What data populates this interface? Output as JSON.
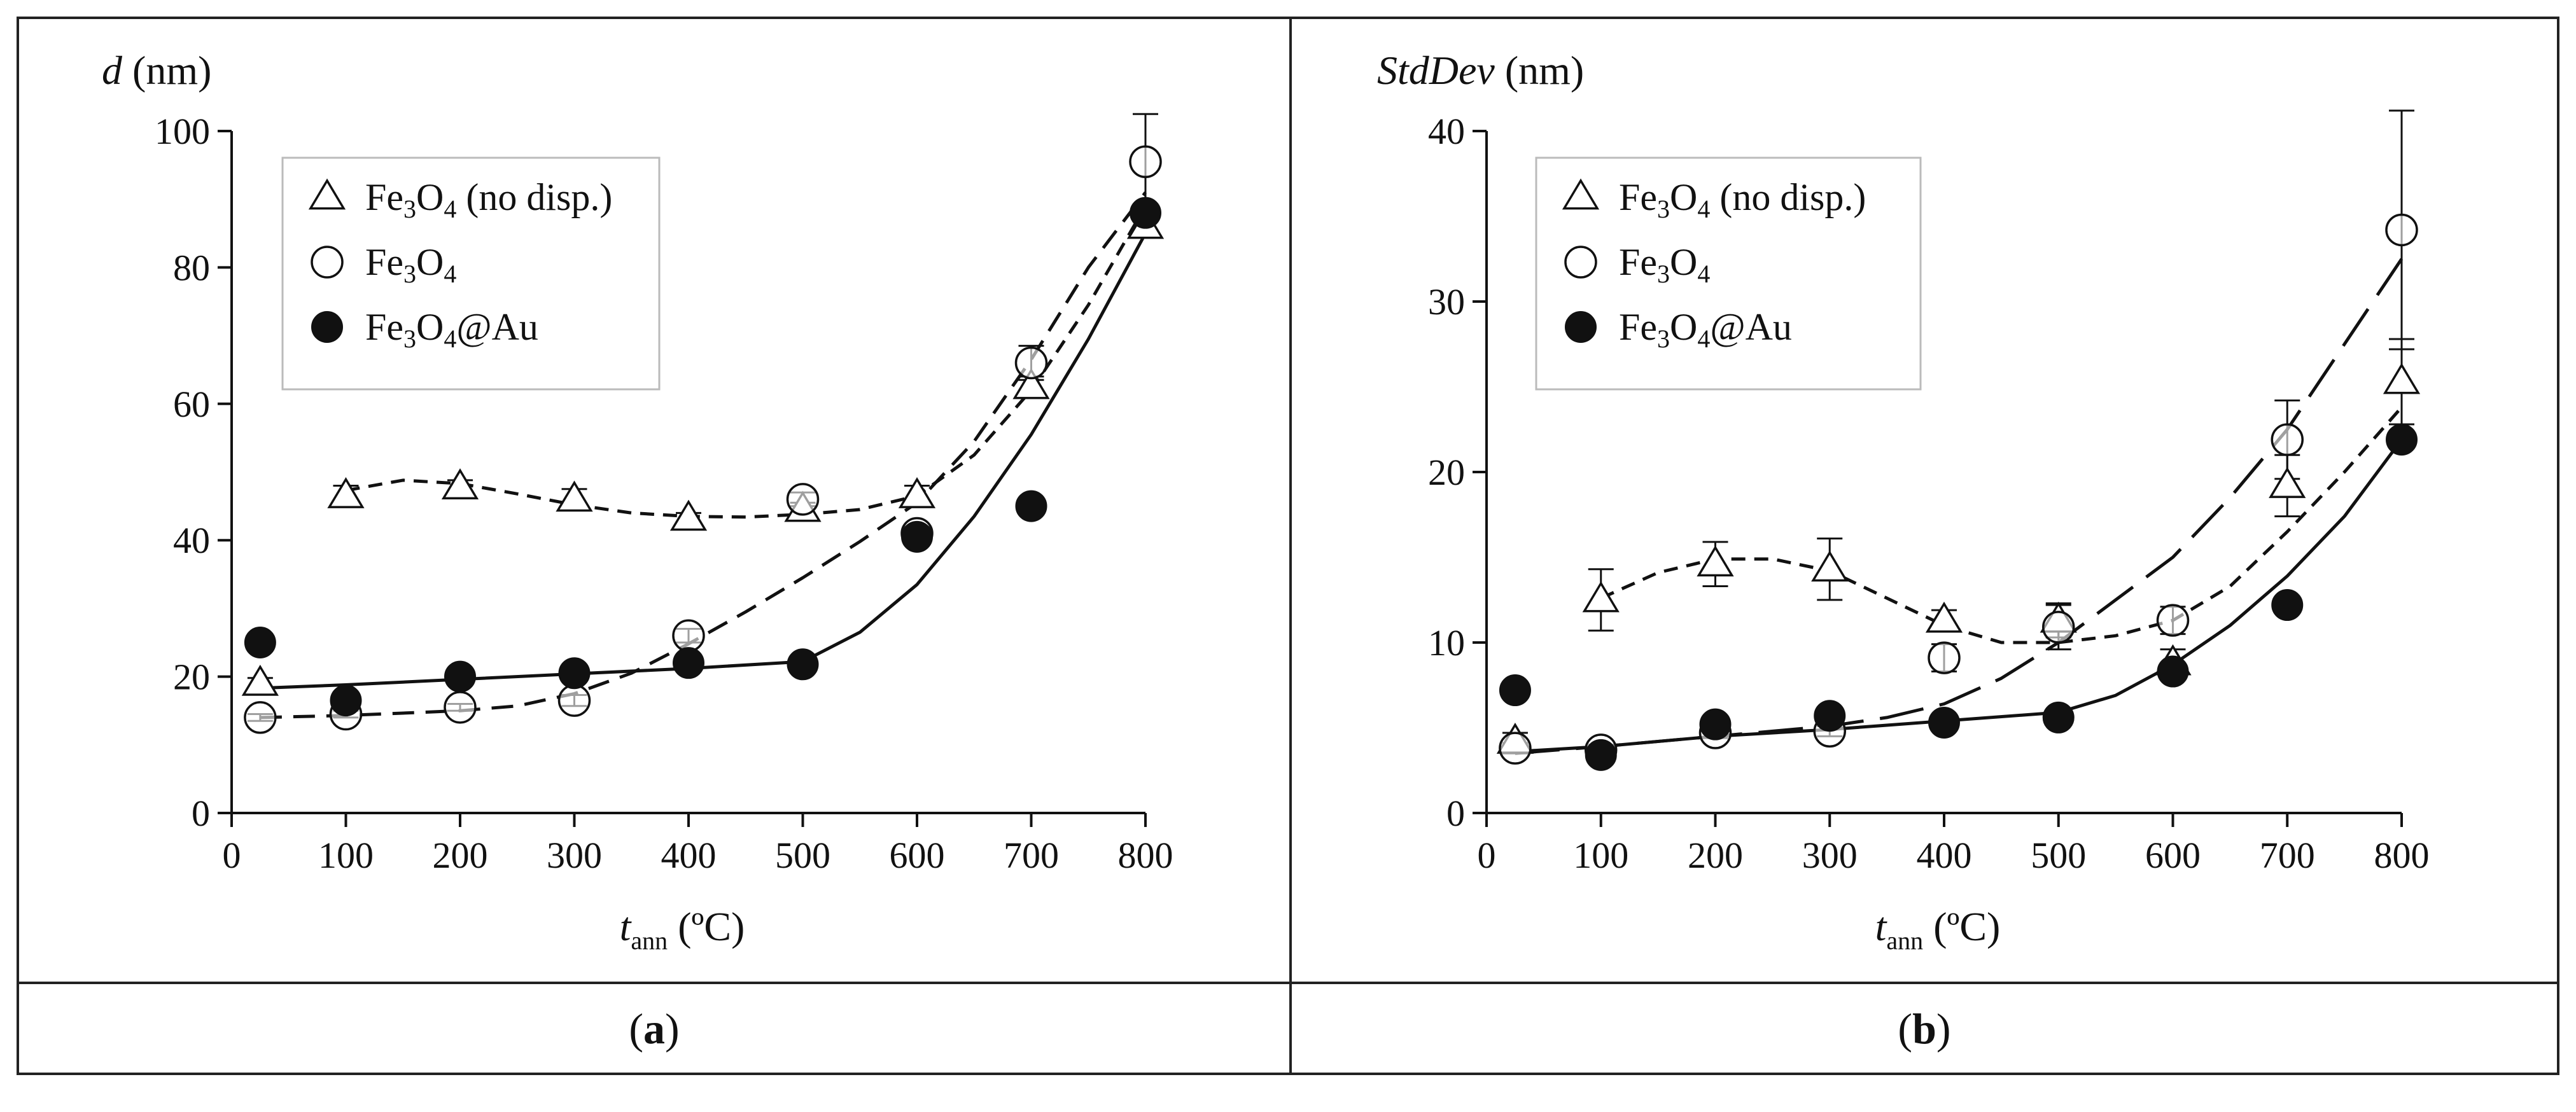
{
  "captions": {
    "a": "a",
    "b": "b"
  },
  "chart_data": [
    {
      "panel": "a",
      "type": "scatter",
      "ylabel_symbol": "d",
      "ylabel_unit": " (nm)",
      "xlabel_symbol": "t",
      "xlabel_sub": "ann",
      "xlabel_unit": " (ºC)",
      "xlim": [
        0,
        800
      ],
      "ylim": [
        0,
        100
      ],
      "xticks": [
        0,
        100,
        200,
        300,
        400,
        500,
        600,
        700,
        800
      ],
      "yticks": [
        0,
        20,
        40,
        60,
        80,
        100
      ],
      "legend": [
        {
          "main": "Fe",
          "sub1": "3",
          "mid": "O",
          "sub2": "4",
          "suffix": " (no disp.)",
          "marker": "triangle-open"
        },
        {
          "main": "Fe",
          "sub1": "3",
          "mid": "O",
          "sub2": "4",
          "suffix": "",
          "marker": "circle-open"
        },
        {
          "main": "Fe",
          "sub1": "3",
          "mid": "O",
          "sub2": "4",
          "suffix": "@Au",
          "marker": "circle-filled"
        }
      ],
      "series": [
        {
          "name": "Fe3O4 (no disp.)",
          "marker": "triangle-open",
          "x": [
            25,
            100,
            200,
            300,
            400,
            500,
            600,
            700,
            800
          ],
          "y": [
            19,
            46.5,
            47.8,
            46,
            43.2,
            44.5,
            46.5,
            62.5,
            86
          ],
          "err": [
            0.8,
            1.5,
            1.0,
            1.5,
            0.8,
            1.0,
            1.5,
            1.5,
            1.5
          ],
          "fit_x": [
            100,
            150,
            200,
            250,
            300,
            350,
            400,
            450,
            500,
            550,
            600,
            650,
            700,
            750,
            800
          ],
          "fit_y": [
            47.3,
            48.8,
            48.3,
            46.8,
            45.2,
            44.0,
            43.5,
            43.4,
            43.8,
            44.5,
            46.5,
            52.5,
            62.0,
            74.5,
            89.0
          ],
          "fit_style": "short-dash"
        },
        {
          "name": "Fe3O4",
          "marker": "circle-open",
          "x": [
            25,
            100,
            200,
            300,
            400,
            500,
            600,
            700,
            800
          ],
          "y": [
            14,
            14.5,
            15.5,
            16.5,
            26,
            46,
            41,
            66,
            95.5
          ],
          "err": [
            0.5,
            0.5,
            0.5,
            0.8,
            1.0,
            1.0,
            1.0,
            2.5,
            7
          ],
          "fit_x": [
            25,
            100,
            200,
            250,
            300,
            350,
            400,
            450,
            500,
            550,
            600,
            650,
            700,
            750,
            800
          ],
          "fit_y": [
            14,
            14.3,
            15.0,
            15.7,
            17.5,
            20.5,
            24.8,
            29.5,
            34.5,
            39.8,
            45.5,
            54.5,
            66.5,
            80.0,
            91.0
          ],
          "fit_style": "medium-dash"
        },
        {
          "name": "Fe3O4@Au",
          "marker": "circle-filled",
          "x": [
            25,
            100,
            200,
            300,
            400,
            500,
            600,
            700,
            800
          ],
          "y": [
            25,
            16.5,
            20,
            20.5,
            22,
            21.8,
            40.5,
            45,
            88
          ],
          "err": [
            0,
            0,
            0,
            0,
            0,
            0,
            0,
            0,
            0
          ],
          "fit_x": [
            25,
            100,
            200,
            300,
            400,
            500,
            550,
            600,
            650,
            700,
            750,
            800
          ],
          "fit_y": [
            18.3,
            18.8,
            19.6,
            20.4,
            21.2,
            22.2,
            26.5,
            33.5,
            43.5,
            55.5,
            69.5,
            85.0
          ],
          "fit_style": "solid"
        }
      ]
    },
    {
      "panel": "b",
      "type": "scatter",
      "ylabel_symbol": "StdDev",
      "ylabel_unit": " (nm)",
      "xlabel_symbol": "t",
      "xlabel_sub": "ann",
      "xlabel_unit": " (ºC)",
      "xlim": [
        0,
        800
      ],
      "ylim": [
        0,
        40
      ],
      "xticks": [
        0,
        100,
        200,
        300,
        400,
        500,
        600,
        700,
        800
      ],
      "yticks": [
        0,
        10,
        20,
        30,
        40
      ],
      "legend": [
        {
          "main": "Fe",
          "sub1": "3",
          "mid": "O",
          "sub2": "4",
          "suffix": " (no disp.)",
          "marker": "triangle-open"
        },
        {
          "main": "Fe",
          "sub1": "3",
          "mid": "O",
          "sub2": "4",
          "suffix": "",
          "marker": "circle-open"
        },
        {
          "main": "Fe",
          "sub1": "3",
          "mid": "O",
          "sub2": "4",
          "suffix": "@Au",
          "marker": "circle-filled"
        }
      ],
      "series": [
        {
          "name": "Fe3O4 (no disp.)",
          "marker": "triangle-open",
          "x": [
            25,
            100,
            200,
            300,
            400,
            500,
            600,
            700,
            800
          ],
          "y": [
            4.2,
            12.5,
            14.6,
            14.3,
            11.3,
            11.3,
            8.8,
            19.2,
            25.3
          ],
          "err": [
            0.5,
            1.8,
            1.3,
            1.8,
            0.6,
            1.0,
            0.8,
            1.8,
            2.5
          ],
          "fit_x": [
            100,
            150,
            200,
            250,
            300,
            350,
            400,
            450,
            500,
            550,
            600,
            650,
            700,
            750,
            800
          ],
          "fit_y": [
            12.6,
            14.1,
            14.9,
            14.9,
            14.2,
            12.6,
            11.0,
            10.0,
            10.0,
            10.4,
            11.3,
            13.3,
            16.5,
            20.0,
            23.8
          ],
          "fit_style": "short-dash"
        },
        {
          "name": "Fe3O4",
          "marker": "circle-open",
          "x": [
            25,
            100,
            200,
            300,
            400,
            500,
            600,
            700,
            800
          ],
          "y": [
            3.8,
            3.7,
            4.7,
            4.8,
            9.1,
            10.9,
            11.3,
            21.9,
            34.2
          ],
          "err": [
            0.3,
            0.3,
            0.3,
            0.3,
            0.8,
            1.3,
            0.8,
            2.3,
            7
          ],
          "fit_x": [
            25,
            100,
            200,
            300,
            350,
            400,
            450,
            500,
            550,
            600,
            650,
            700,
            750,
            800
          ],
          "fit_y": [
            3.5,
            3.9,
            4.5,
            5.1,
            5.6,
            6.4,
            7.9,
            10.0,
            12.5,
            15.0,
            18.5,
            22.5,
            27.5,
            32.5
          ],
          "fit_style": "long-dash"
        },
        {
          "name": "Fe3O4@Au",
          "marker": "circle-filled",
          "x": [
            25,
            100,
            200,
            300,
            400,
            500,
            600,
            700,
            800
          ],
          "y": [
            7.2,
            3.4,
            5.2,
            5.7,
            5.3,
            5.6,
            8.3,
            12.2,
            21.9
          ],
          "err": [
            0,
            0,
            0,
            0,
            0,
            0,
            0,
            0,
            0
          ],
          "fit_x": [
            25,
            100,
            200,
            300,
            400,
            500,
            550,
            600,
            650,
            700,
            750,
            800
          ],
          "fit_y": [
            3.6,
            3.9,
            4.5,
            4.9,
            5.4,
            5.9,
            6.9,
            8.7,
            11.0,
            13.9,
            17.4,
            21.9
          ],
          "fit_style": "solid"
        }
      ]
    }
  ]
}
